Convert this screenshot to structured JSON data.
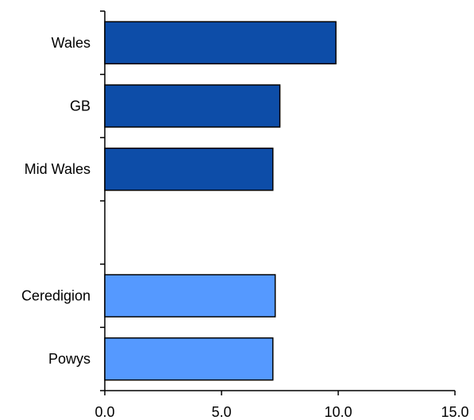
{
  "chart_data": {
    "type": "bar",
    "orientation": "horizontal",
    "categories": [
      "Wales",
      "GB",
      "Mid Wales",
      "",
      "Ceredigion",
      "Powys"
    ],
    "values": [
      9.9,
      7.5,
      7.2,
      null,
      7.3,
      7.2
    ],
    "bar_colors": [
      "#0D4DA8",
      "#0D4DA8",
      "#0D4DA8",
      null,
      "#5599FF",
      "#5599FF"
    ],
    "xlim": [
      0,
      15
    ],
    "x_ticks": [
      "0.0",
      "5.0",
      "10.0",
      "15.0"
    ],
    "grid": false,
    "legend": "none"
  }
}
